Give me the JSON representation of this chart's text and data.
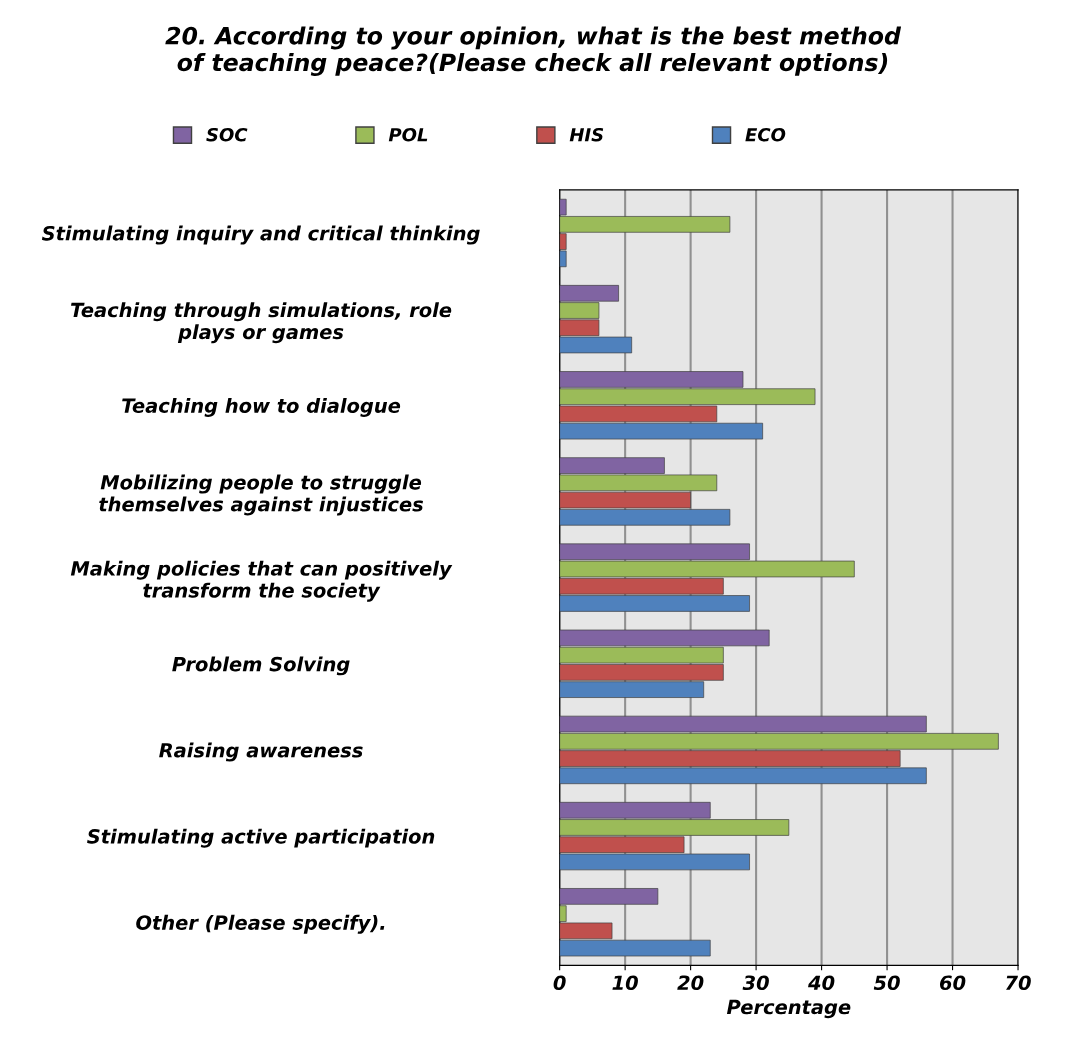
{
  "chart_data": {
    "type": "bar",
    "orientation": "horizontal",
    "title": "20. According to your opinion, what is the best method\nof teaching peace?(Please check all relevant options)",
    "xlabel": "Percentage",
    "categories": [
      "Stimulating inquiry and critical thinking",
      "Teaching through simulations, role\nplays or games",
      "Teaching how to dialogue",
      "Mobilizing people to struggle\nthemselves against injustices",
      "Making policies that can positively\ntransform the society",
      "Problem Solving",
      "Raising awareness",
      "Stimulating active participation",
      "Other (Please specify)."
    ],
    "series": [
      {
        "name": "SOC",
        "color": "#8064a2",
        "values": [
          1,
          9,
          28,
          16,
          29,
          32,
          56,
          23,
          15
        ]
      },
      {
        "name": "POL",
        "color": "#9bbb59",
        "values": [
          26,
          6,
          39,
          24,
          45,
          25,
          67,
          35,
          1
        ]
      },
      {
        "name": "HIS",
        "color": "#c0504d",
        "values": [
          1,
          6,
          24,
          20,
          25,
          25,
          52,
          19,
          8
        ]
      },
      {
        "name": "ECO",
        "color": "#4f81bd",
        "values": [
          1,
          11,
          31,
          26,
          29,
          22,
          56,
          29,
          23
        ]
      }
    ],
    "xlim": [
      0,
      70
    ],
    "xticks": [
      0,
      10,
      20,
      30,
      40,
      50,
      60,
      70
    ],
    "grid": "x",
    "legend": "top"
  }
}
